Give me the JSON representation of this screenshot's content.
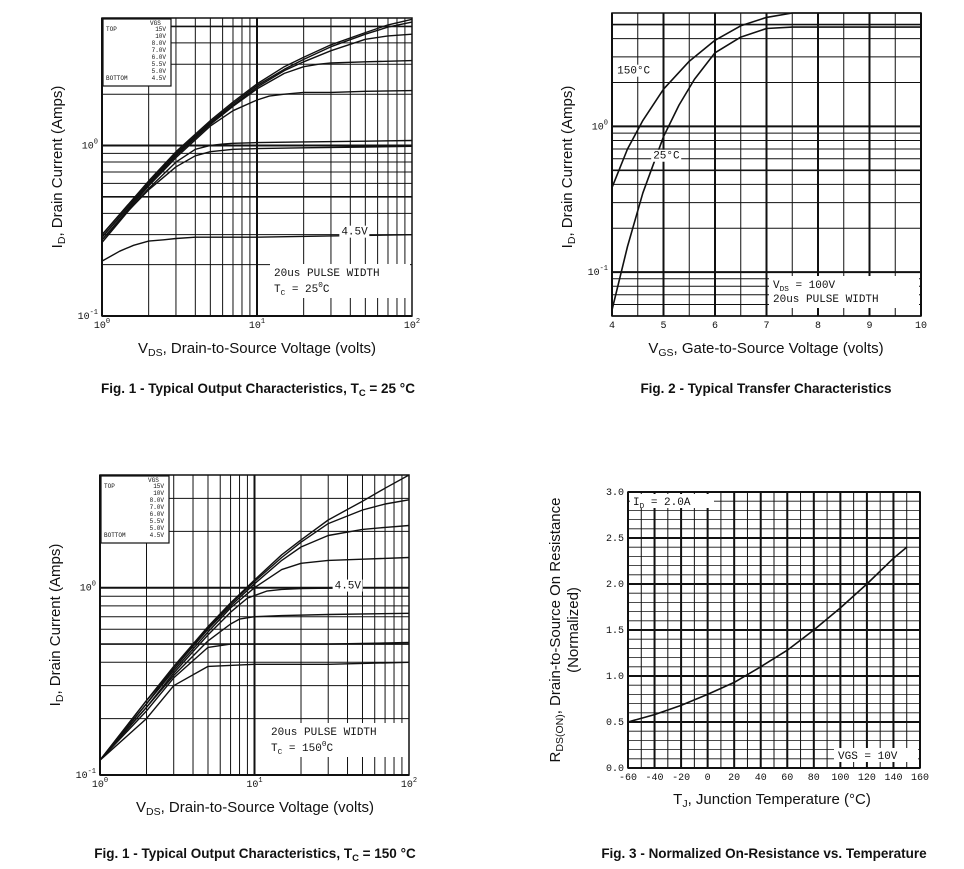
{
  "chart_data": [
    {
      "id": "fig1a",
      "type": "line",
      "title": "",
      "caption": "Fig. 1 - Typical Output Characteristics, T",
      "caption_sub": "C",
      "caption_tail": " = 25 °C",
      "xlabel_pre": "V",
      "xlabel_sub": "DS",
      "xlabel_post": ", Drain-to-Source Voltage (volts)",
      "ylabel_pre": "I",
      "ylabel_sub": "D",
      "ylabel_post": ", Drain Current (Amps)",
      "xscale": "log",
      "yscale": "log",
      "xlim": [
        1,
        100
      ],
      "ylim": [
        0.1,
        5.6
      ],
      "xticks": [
        {
          "v": 1,
          "t": "10",
          "e": "0"
        },
        {
          "v": 10,
          "t": "10",
          "e": "1"
        },
        {
          "v": 100,
          "t": "10",
          "e": "2"
        }
      ],
      "yticks": [
        {
          "v": 0.1,
          "t": "10",
          "e": "-1"
        },
        {
          "v": 1,
          "t": "10",
          "e": "0"
        }
      ],
      "legend": {
        "header": "VGS",
        "top_label": "TOP",
        "bottom_label": "BOTTOM",
        "values": [
          "15V",
          "10V",
          "8.0V",
          "7.0V",
          "6.0V",
          "5.5V",
          "5.0V",
          "4.5V"
        ]
      },
      "annotations": [
        {
          "text": "4.5V",
          "x": 35,
          "y": 0.3
        }
      ],
      "note_lines": [
        "20us PULSE WIDTH"
      ],
      "note_tc": [
        "T",
        "C",
        " = 25",
        "0",
        "C"
      ],
      "series": [
        {
          "name": "15V",
          "x": [
            1,
            2,
            3,
            5,
            7,
            10,
            15,
            20,
            30,
            50,
            70,
            100
          ],
          "y": [
            0.3,
            0.62,
            0.92,
            1.4,
            1.8,
            2.3,
            2.9,
            3.3,
            3.9,
            4.6,
            5.1,
            5.5
          ]
        },
        {
          "name": "10V",
          "x": [
            1,
            2,
            3,
            5,
            7,
            10,
            15,
            20,
            30,
            50,
            70,
            100
          ],
          "y": [
            0.3,
            0.61,
            0.9,
            1.37,
            1.76,
            2.25,
            2.8,
            3.2,
            3.8,
            4.5,
            4.95,
            5.3
          ]
        },
        {
          "name": "8.0V",
          "x": [
            1,
            2,
            3,
            5,
            7,
            10,
            15,
            20,
            30,
            50,
            70,
            100
          ],
          "y": [
            0.29,
            0.6,
            0.88,
            1.35,
            1.72,
            2.2,
            2.75,
            3.1,
            3.6,
            4.2,
            4.4,
            4.5
          ]
        },
        {
          "name": "7.0V",
          "x": [
            1,
            2,
            3,
            5,
            7,
            10,
            15,
            20,
            25,
            30,
            50,
            100
          ],
          "y": [
            0.29,
            0.59,
            0.87,
            1.33,
            1.7,
            2.15,
            2.65,
            2.9,
            3.0,
            3.05,
            3.1,
            3.15
          ]
        },
        {
          "name": "6.0V",
          "x": [
            1,
            2,
            3,
            5,
            7,
            10,
            12,
            15,
            20,
            30,
            50,
            100
          ],
          "y": [
            0.28,
            0.58,
            0.85,
            1.3,
            1.6,
            1.85,
            1.95,
            2.0,
            2.05,
            2.05,
            2.08,
            2.1
          ]
        },
        {
          "name": "5.5V",
          "x": [
            1,
            2,
            3,
            4,
            5,
            6,
            7,
            10,
            20,
            50,
            100
          ],
          "y": [
            0.28,
            0.56,
            0.8,
            0.95,
            1.0,
            1.02,
            1.03,
            1.04,
            1.05,
            1.06,
            1.07
          ]
        },
        {
          "name": "5.0V",
          "x": [
            1,
            1.5,
            2,
            3,
            4,
            5,
            7,
            10,
            20,
            50,
            100
          ],
          "y": [
            0.27,
            0.42,
            0.55,
            0.75,
            0.87,
            0.92,
            0.95,
            0.96,
            0.97,
            0.98,
            0.99
          ]
        },
        {
          "name": "4.5V",
          "x": [
            1,
            1.3,
            1.6,
            2,
            2.5,
            3,
            4,
            10,
            30,
            100
          ],
          "y": [
            0.21,
            0.24,
            0.26,
            0.275,
            0.28,
            0.285,
            0.29,
            0.29,
            0.295,
            0.3
          ]
        }
      ]
    },
    {
      "id": "fig2",
      "type": "line",
      "title": "",
      "caption": "Fig. 2 - Typical Transfer Characteristics",
      "caption_sub": "",
      "caption_tail": "",
      "xlabel_pre": "V",
      "xlabel_sub": "GS",
      "xlabel_post": ", Gate-to-Source Voltage (volts)",
      "ylabel_pre": "I",
      "ylabel_sub": "D",
      "ylabel_post": ", Drain Current (Amps)",
      "xscale": "linear",
      "yscale": "log",
      "xlim": [
        4,
        10
      ],
      "ylim": [
        0.05,
        6
      ],
      "xticks": [
        {
          "v": 4,
          "t": "4"
        },
        {
          "v": 5,
          "t": "5"
        },
        {
          "v": 6,
          "t": "6"
        },
        {
          "v": 7,
          "t": "7"
        },
        {
          "v": 8,
          "t": "8"
        },
        {
          "v": 9,
          "t": "9"
        },
        {
          "v": 10,
          "t": "10"
        }
      ],
      "yticks": [
        {
          "v": 0.1,
          "t": "10",
          "e": "-1"
        },
        {
          "v": 1,
          "t": "10",
          "e": "0"
        }
      ],
      "annotations": [
        {
          "text": "150°C",
          "x": 4.1,
          "y": 2.3
        },
        {
          "text": "25°C",
          "x": 4.8,
          "y": 0.6
        }
      ],
      "note_lines": [
        "V",
        "DS",
        " = 100V",
        "20us PULSE WIDTH"
      ],
      "series": [
        {
          "name": "150°C",
          "x": [
            4,
            4.3,
            4.6,
            5,
            5.5,
            6,
            6.5,
            7,
            7.5,
            8,
            9,
            10
          ],
          "y": [
            0.38,
            0.7,
            1.1,
            1.8,
            2.8,
            3.9,
            4.9,
            5.6,
            6.0,
            6.0,
            6.0,
            6.0
          ]
        },
        {
          "name": "25°C",
          "x": [
            4,
            4.3,
            4.6,
            5,
            5.3,
            5.6,
            6,
            6.5,
            7,
            7.5,
            8,
            9,
            10
          ],
          "y": [
            0.055,
            0.15,
            0.35,
            0.85,
            1.4,
            2.1,
            3.2,
            4.1,
            4.7,
            4.8,
            4.8,
            4.8,
            4.8
          ]
        }
      ]
    },
    {
      "id": "fig1b",
      "type": "line",
      "title": "",
      "caption": "Fig. 1 - Typical Output Characteristics, T",
      "caption_sub": "C",
      "caption_tail": " = 150 °C",
      "xlabel_pre": "V",
      "xlabel_sub": "DS",
      "xlabel_post": ", Drain-to-Source Voltage (volts)",
      "ylabel_pre": "I",
      "ylabel_sub": "D",
      "ylabel_post": ", Drain Current (Amps)",
      "xscale": "log",
      "yscale": "log",
      "xlim": [
        1,
        100
      ],
      "ylim": [
        0.1,
        4
      ],
      "xticks": [
        {
          "v": 1,
          "t": "10",
          "e": "0"
        },
        {
          "v": 10,
          "t": "10",
          "e": "1"
        },
        {
          "v": 100,
          "t": "10",
          "e": "2"
        }
      ],
      "yticks": [
        {
          "v": 0.1,
          "t": "10",
          "e": "-1"
        },
        {
          "v": 1,
          "t": "10",
          "e": "0"
        }
      ],
      "legend": {
        "header": "VGS",
        "top_label": "TOP",
        "bottom_label": "BOTTOM",
        "values": [
          "15V",
          "10V",
          "8.0V",
          "7.0V",
          "6.0V",
          "5.5V",
          "5.0V",
          "4.5V"
        ]
      },
      "annotations": [
        {
          "text": "4.5V",
          "x": 33,
          "y": 0.99
        }
      ],
      "note_lines": [
        "20us PULSE WIDTH"
      ],
      "note_tc": [
        "T",
        "C",
        " = 150",
        "0",
        "C"
      ],
      "series": [
        {
          "name": "15V",
          "x": [
            1,
            2,
            3,
            5,
            7,
            10,
            15,
            20,
            30,
            50,
            70,
            100
          ],
          "y": [
            0.12,
            0.25,
            0.38,
            0.62,
            0.83,
            1.1,
            1.5,
            1.8,
            2.3,
            2.9,
            3.4,
            4.0
          ]
        },
        {
          "name": "10V",
          "x": [
            1,
            2,
            3,
            5,
            7,
            10,
            15,
            20,
            30,
            50,
            70,
            100
          ],
          "y": [
            0.12,
            0.25,
            0.37,
            0.61,
            0.82,
            1.08,
            1.45,
            1.75,
            2.2,
            2.6,
            2.8,
            2.95
          ]
        },
        {
          "name": "8.0V",
          "x": [
            1,
            2,
            3,
            5,
            7,
            10,
            15,
            20,
            30,
            50,
            70,
            100
          ],
          "y": [
            0.12,
            0.24,
            0.37,
            0.6,
            0.8,
            1.05,
            1.4,
            1.65,
            1.9,
            2.05,
            2.1,
            2.15
          ]
        },
        {
          "name": "7.0V",
          "x": [
            1,
            2,
            3,
            5,
            7,
            10,
            15,
            20,
            30,
            50,
            100
          ],
          "y": [
            0.12,
            0.24,
            0.36,
            0.58,
            0.78,
            1.0,
            1.25,
            1.35,
            1.4,
            1.42,
            1.45
          ]
        },
        {
          "name": "6.0V",
          "x": [
            1,
            2,
            3,
            5,
            7,
            9,
            12,
            15,
            20,
            50,
            100
          ],
          "y": [
            0.12,
            0.23,
            0.35,
            0.56,
            0.74,
            0.88,
            0.96,
            0.98,
            0.99,
            1.0,
            1.0
          ]
        },
        {
          "name": "5.5V",
          "x": [
            1,
            2,
            3,
            5,
            7,
            8,
            10,
            15,
            30,
            100
          ],
          "y": [
            0.12,
            0.23,
            0.34,
            0.52,
            0.64,
            0.68,
            0.7,
            0.71,
            0.72,
            0.73
          ]
        },
        {
          "name": "5.0V",
          "x": [
            1,
            2,
            3,
            5,
            7,
            10,
            30,
            100
          ],
          "y": [
            0.12,
            0.22,
            0.33,
            0.48,
            0.5,
            0.5,
            0.5,
            0.51
          ]
        },
        {
          "name": "4.5V",
          "x": [
            1,
            2,
            3,
            5,
            10,
            30,
            100
          ],
          "y": [
            0.12,
            0.2,
            0.3,
            0.38,
            0.39,
            0.39,
            0.4
          ]
        }
      ]
    },
    {
      "id": "fig3",
      "type": "line",
      "title": "",
      "caption": "Fig. 3 - Normalized On-Resistance vs. Temperature",
      "caption_sub": "",
      "caption_tail": "",
      "xlabel_pre": "T",
      "xlabel_sub": "J",
      "xlabel_post": ", Junction Temperature (°C)",
      "ylabel_pre": "R",
      "ylabel_sub": "DS(ON)",
      "ylabel_post": ", Drain-to-Source On Resistance",
      "ylabel2": "(Normalized)",
      "xscale": "linear",
      "yscale": "linear",
      "xlim": [
        -60,
        160
      ],
      "ylim": [
        0,
        3.0
      ],
      "xticks": [
        {
          "v": -60,
          "t": "-60"
        },
        {
          "v": -40,
          "t": "-40"
        },
        {
          "v": -20,
          "t": "-20"
        },
        {
          "v": 0,
          "t": "0"
        },
        {
          "v": 20,
          "t": "20"
        },
        {
          "v": 40,
          "t": "40"
        },
        {
          "v": 60,
          "t": "60"
        },
        {
          "v": 80,
          "t": "80"
        },
        {
          "v": 100,
          "t": "100"
        },
        {
          "v": 120,
          "t": "120"
        },
        {
          "v": 140,
          "t": "140"
        },
        {
          "v": 160,
          "t": "160"
        }
      ],
      "yticks": [
        {
          "v": 0,
          "t": "0.0"
        },
        {
          "v": 0.5,
          "t": "0.5"
        },
        {
          "v": 1,
          "t": "1.0"
        },
        {
          "v": 1.5,
          "t": "1.5"
        },
        {
          "v": 2,
          "t": "2.0"
        },
        {
          "v": 2.5,
          "t": "2.5"
        },
        {
          "v": 3,
          "t": "3.0"
        }
      ],
      "notes": {
        "top_left": [
          "I",
          "D",
          " = 2.0A"
        ],
        "bottom_right": "VGS = 10V"
      },
      "series": [
        {
          "name": "RDS(on)",
          "x": [
            -60,
            -40,
            -20,
            0,
            20,
            40,
            60,
            80,
            100,
            120,
            140,
            150
          ],
          "y": [
            0.5,
            0.58,
            0.68,
            0.8,
            0.93,
            1.1,
            1.28,
            1.5,
            1.74,
            2.0,
            2.28,
            2.4
          ]
        }
      ]
    }
  ]
}
